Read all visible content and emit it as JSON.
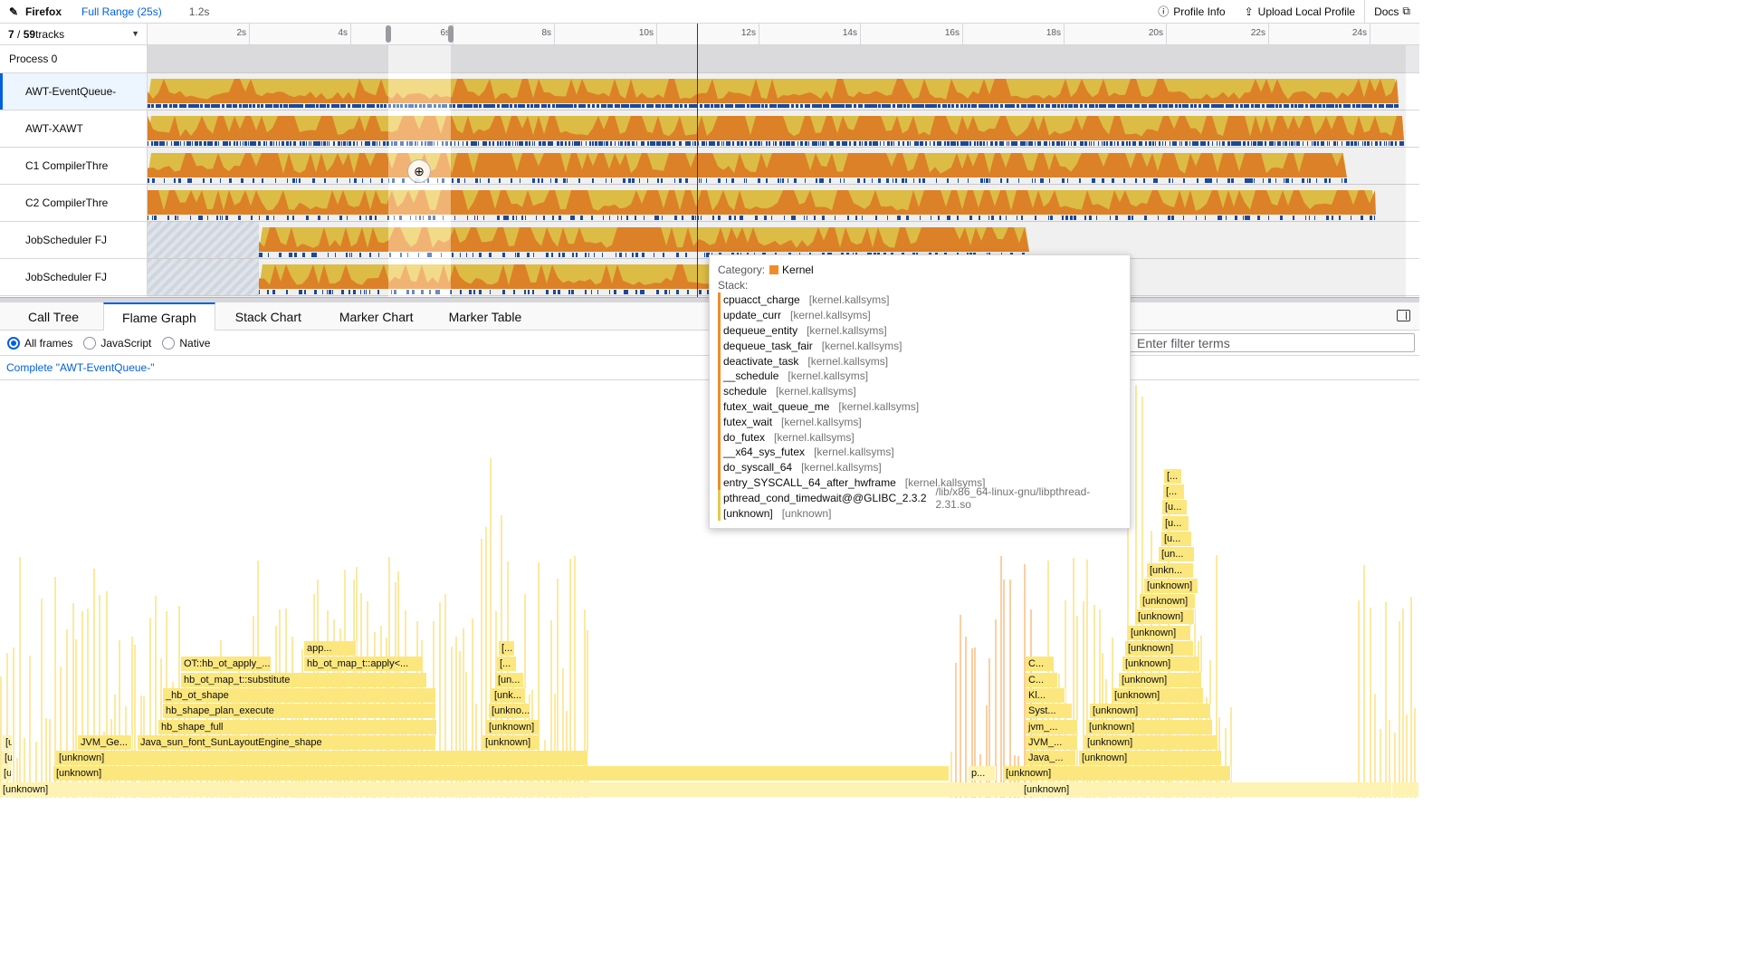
{
  "topbar": {
    "brand": "Firefox",
    "range": "Full Range (25s)",
    "uncommitted": "1.2s",
    "profile_info": "Profile Info",
    "upload": "Upload Local Profile",
    "docs": "Docs"
  },
  "timeline": {
    "track_count_visible": "7",
    "track_count_total": "59",
    "track_count_suffix": " tracks",
    "ticks": [
      "2s",
      "4s",
      "6s",
      "8s",
      "10s",
      "12s",
      "14s",
      "16s",
      "18s",
      "20s",
      "22s",
      "24s"
    ],
    "process": "Process 0",
    "tracks": [
      {
        "label": "AWT-EventQueue-"
      },
      {
        "label": "AWT-XAWT"
      },
      {
        "label": "C1 CompilerThre"
      },
      {
        "label": "C2 CompilerThre"
      },
      {
        "label": "JobScheduler FJ"
      },
      {
        "label": "JobScheduler FJ"
      }
    ]
  },
  "tabs": [
    "Call Tree",
    "Flame Graph",
    "Stack Chart",
    "Marker Chart",
    "Marker Table"
  ],
  "active_tab": "Flame Graph",
  "settings": {
    "options": [
      "All frames",
      "JavaScript",
      "Native"
    ],
    "selected": "All frames",
    "filter_placeholder": "Enter filter terms"
  },
  "breadcrumb": "Complete \"AWT-EventQueue-\"",
  "tooltip": {
    "category_label": "Category:",
    "category_value": "Kernel",
    "category_color": "#f28c28",
    "stack_label": "Stack:",
    "frames": [
      {
        "fn": "cpuacct_charge",
        "lib": "[kernel.kallsyms]",
        "color": "#f28c28"
      },
      {
        "fn": "update_curr",
        "lib": "[kernel.kallsyms]",
        "color": "#f28c28"
      },
      {
        "fn": "dequeue_entity",
        "lib": "[kernel.kallsyms]",
        "color": "#f28c28"
      },
      {
        "fn": "dequeue_task_fair",
        "lib": "[kernel.kallsyms]",
        "color": "#f28c28"
      },
      {
        "fn": "deactivate_task",
        "lib": "[kernel.kallsyms]",
        "color": "#f28c28"
      },
      {
        "fn": "__schedule",
        "lib": "[kernel.kallsyms]",
        "color": "#f28c28"
      },
      {
        "fn": "schedule",
        "lib": "[kernel.kallsyms]",
        "color": "#f28c28"
      },
      {
        "fn": "futex_wait_queue_me",
        "lib": "[kernel.kallsyms]",
        "color": "#f28c28"
      },
      {
        "fn": "futex_wait",
        "lib": "[kernel.kallsyms]",
        "color": "#f28c28"
      },
      {
        "fn": "do_futex",
        "lib": "[kernel.kallsyms]",
        "color": "#f28c28"
      },
      {
        "fn": "__x64_sys_futex",
        "lib": "[kernel.kallsyms]",
        "color": "#f28c28"
      },
      {
        "fn": "do_syscall_64",
        "lib": "[kernel.kallsyms]",
        "color": "#f28c28"
      },
      {
        "fn": "entry_SYSCALL_64_after_hwframe",
        "lib": "[kernel.kallsyms]",
        "color": "#f28c28"
      },
      {
        "fn": "pthread_cond_timedwait@@GLIBC_2.3.2",
        "lib": "/lib/x86_64-linux-gnu/libpthread-2.31.so",
        "color": "#e5c84b"
      },
      {
        "fn": "[unknown]",
        "lib": "[unknown]",
        "color": "#e5c84b"
      }
    ]
  },
  "flame": {
    "boxes_left": [
      {
        "label": "[unknown]"
      },
      {
        "label": "[unkn..."
      },
      {
        "label": "[unknown]"
      },
      {
        "label": "[unkn..."
      },
      {
        "label": "[unknown]"
      },
      {
        "label": "[u..."
      },
      {
        "label": "JVM_Ge..."
      },
      {
        "label": "Java_sun_font_SunLayoutEngine_shape"
      },
      {
        "label": "hb_shape_full"
      },
      {
        "label": "hb_shape_plan_execute"
      },
      {
        "label": "_hb_ot_shape"
      },
      {
        "label": "hb_ot_map_t::substitute"
      },
      {
        "label": "OT::hb_ot_apply_..."
      },
      {
        "label": "hb_ot_map_t::apply<..."
      },
      {
        "label": "app..."
      },
      {
        "label": "[unknown]"
      },
      {
        "label": "[unknown]"
      },
      {
        "label": "[unkno..."
      },
      {
        "label": "[unk..."
      },
      {
        "label": "[un..."
      },
      {
        "label": "[..."
      },
      {
        "label": "[..."
      }
    ],
    "boxes_right": [
      {
        "label": "[unknown]"
      },
      {
        "label": "p..."
      },
      {
        "label": "[unknown]"
      },
      {
        "label": "Java_..."
      },
      {
        "label": "[unknown]"
      },
      {
        "label": "JVM_..."
      },
      {
        "label": "[unknown]"
      },
      {
        "label": "jvm_..."
      },
      {
        "label": "[unknown]"
      },
      {
        "label": "Syst..."
      },
      {
        "label": "[unknown]"
      },
      {
        "label": "Kl..."
      },
      {
        "label": "[unknown]"
      },
      {
        "label": "C..."
      },
      {
        "label": "[unknown]"
      },
      {
        "label": "C..."
      },
      {
        "label": "[unknown]"
      },
      {
        "label": "[unknown]"
      },
      {
        "label": "[unknown]"
      },
      {
        "label": "[unknown]"
      },
      {
        "label": "[unknown]"
      },
      {
        "label": "[unknown]"
      },
      {
        "label": "[unkn..."
      },
      {
        "label": "[un..."
      },
      {
        "label": "[u..."
      },
      {
        "label": "[u..."
      },
      {
        "label": "[u..."
      },
      {
        "label": "[..."
      },
      {
        "label": "[..."
      }
    ]
  }
}
